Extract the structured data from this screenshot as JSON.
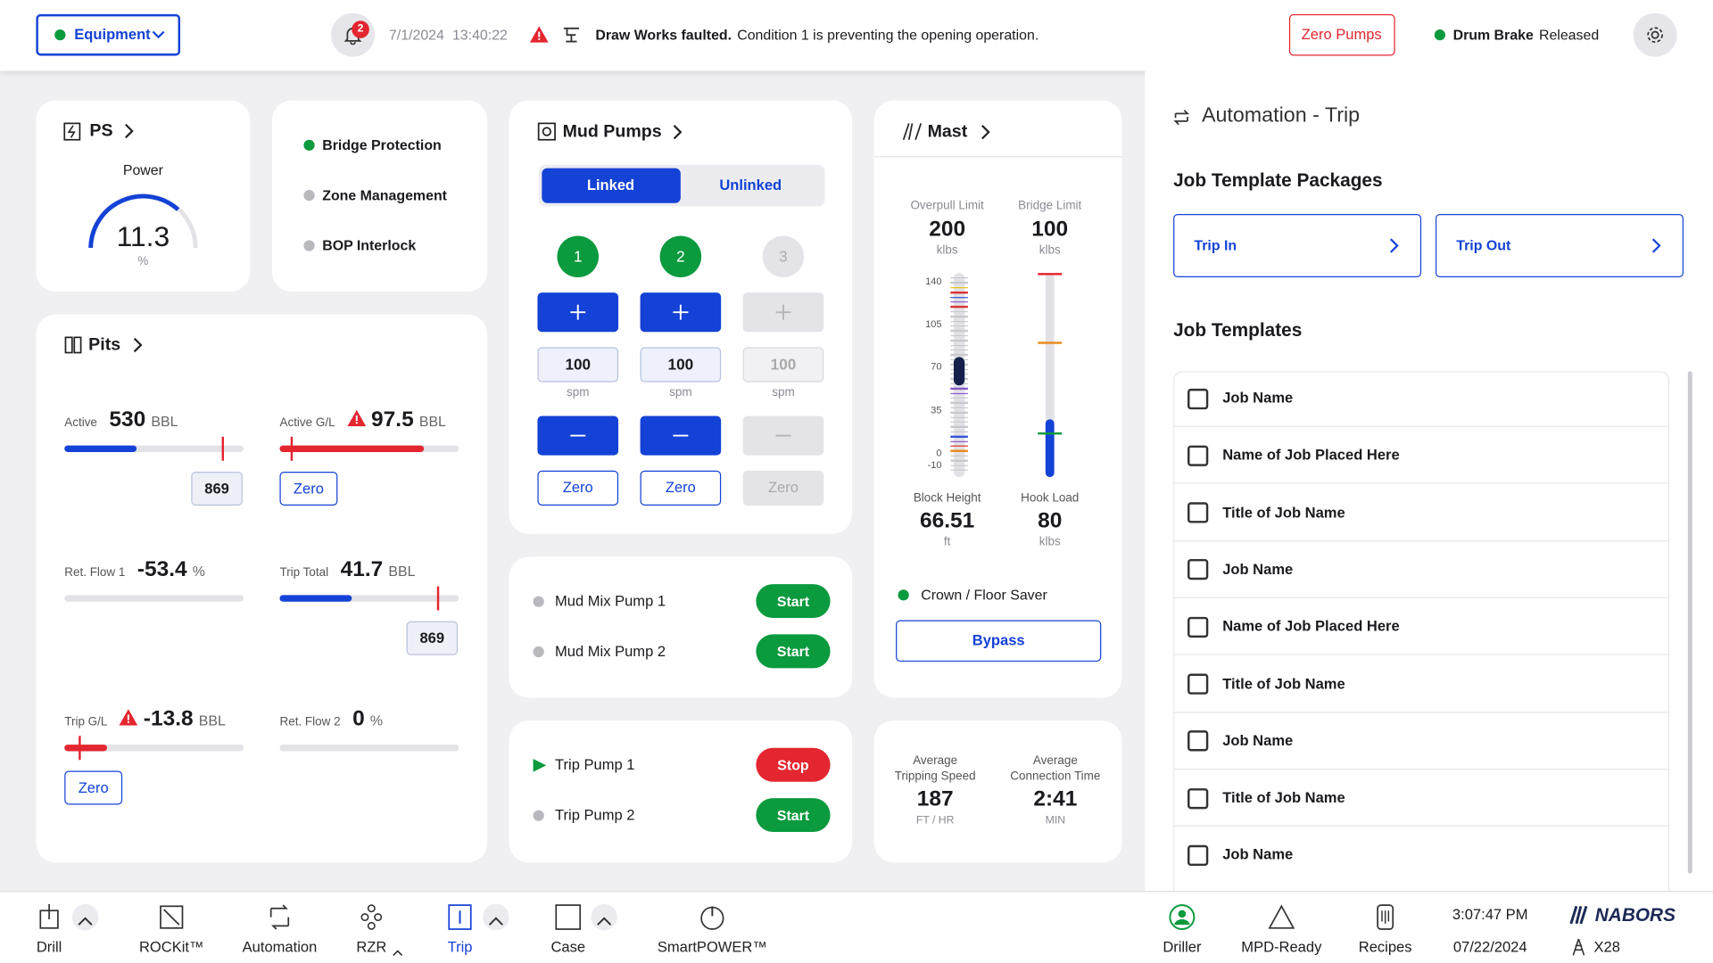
{
  "header": {
    "equipment": "Equipment",
    "notifications": 2,
    "date": "7/1/2024",
    "time": "13:40:22",
    "alert_title": "Draw Works faulted.",
    "alert_text": "Condition 1 is preventing the opening operation.",
    "zero_pumps": "Zero Pumps",
    "drum_brake": {
      "label": "Drum Brake",
      "state": "Released"
    }
  },
  "ps": {
    "title": "PS",
    "label": "Power",
    "value": 11.3,
    "unit": "%"
  },
  "protection": [
    {
      "label": "Bridge Protection",
      "active": true
    },
    {
      "label": "Zone Management",
      "active": false
    },
    {
      "label": "BOP Interlock",
      "active": false
    }
  ],
  "pits": {
    "title": "Pits",
    "cells": [
      {
        "label": "Active",
        "value": 530,
        "unit": "BBL",
        "input": 869
      },
      {
        "label": "Active G/L",
        "value": 97.5,
        "unit": "BBL",
        "warning": true,
        "button": "Zero"
      },
      {
        "label": "Ret. Flow 1",
        "value": -53.4,
        "unit": "%"
      },
      {
        "label": "Trip Total",
        "value": 41.7,
        "unit": "BBL",
        "input": 869
      },
      {
        "label": "Trip G/L",
        "value": -13.8,
        "unit": "BBL",
        "warning": true,
        "button": "Zero"
      },
      {
        "label": "Ret. Flow 2",
        "value": 0,
        "unit": "%"
      }
    ]
  },
  "mud_pumps": {
    "title": "Mud Pumps",
    "modes": [
      "Linked",
      "Unlinked"
    ],
    "pumps": [
      {
        "number": 1,
        "rate": 100,
        "unit": "spm",
        "zero": "Zero",
        "enabled": true
      },
      {
        "number": 2,
        "rate": 100,
        "unit": "spm",
        "zero": "Zero",
        "enabled": true
      },
      {
        "number": 3,
        "rate": 100,
        "unit": "spm",
        "zero": "Zero",
        "enabled": false
      }
    ]
  },
  "mix_pumps": [
    {
      "name": "Mud Mix Pump 1",
      "action": "Start",
      "running": false
    },
    {
      "name": "Mud Mix Pump 2",
      "action": "Start",
      "running": false
    }
  ],
  "trip_pumps": [
    {
      "name": "Trip Pump 1",
      "action": "Stop",
      "running": true
    },
    {
      "name": "Trip Pump 2",
      "action": "Start",
      "running": false
    }
  ],
  "mast": {
    "title": "Mast",
    "overpull": {
      "label": "Overpull Limit",
      "value": 200,
      "unit": "klbs"
    },
    "bridge": {
      "label": "Bridge Limit",
      "value": 100,
      "unit": "klbs"
    },
    "scale": [
      140,
      105,
      70,
      35,
      0,
      -10
    ],
    "block_height": {
      "label": "Block Height",
      "value": 66.51,
      "unit": "ft"
    },
    "hook_load": {
      "label": "Hook Load",
      "value": 80,
      "unit": "klbs"
    },
    "saver": "Crown / Floor Saver",
    "bypass": "Bypass"
  },
  "averages": [
    {
      "label": "Average Tripping Speed",
      "value": 187,
      "unit": "FT / HR"
    },
    {
      "label": "Average Connection Time",
      "value": "2:41",
      "unit": "MIN"
    }
  ],
  "automation": {
    "title": "Automation - Trip",
    "packages_title": "Job Template Packages",
    "packages": [
      "Trip In",
      "Trip Out"
    ],
    "templates_title": "Job Templates",
    "templates": [
      "Job Name",
      "Name of Job Placed Here",
      "Title of Job Name",
      "Job Name",
      "Name of Job Placed Here",
      "Title of Job Name",
      "Job Name",
      "Title of Job Name",
      "Job Name"
    ]
  },
  "nav": {
    "items": [
      {
        "label": "Drill",
        "menu": true
      },
      {
        "label": "ROCKit™"
      },
      {
        "label": "Automation"
      },
      {
        "label": "RZR"
      },
      {
        "label": "Trip",
        "menu": true,
        "active": true
      },
      {
        "label": "Case",
        "menu": true
      },
      {
        "label": "SmartPOWER™"
      }
    ],
    "tools": [
      "Driller",
      "MPD-Ready",
      "Recipes"
    ],
    "time": "3:07:47 PM",
    "date": "07/22/2024",
    "brand": "NABORS",
    "rig": "X28"
  }
}
